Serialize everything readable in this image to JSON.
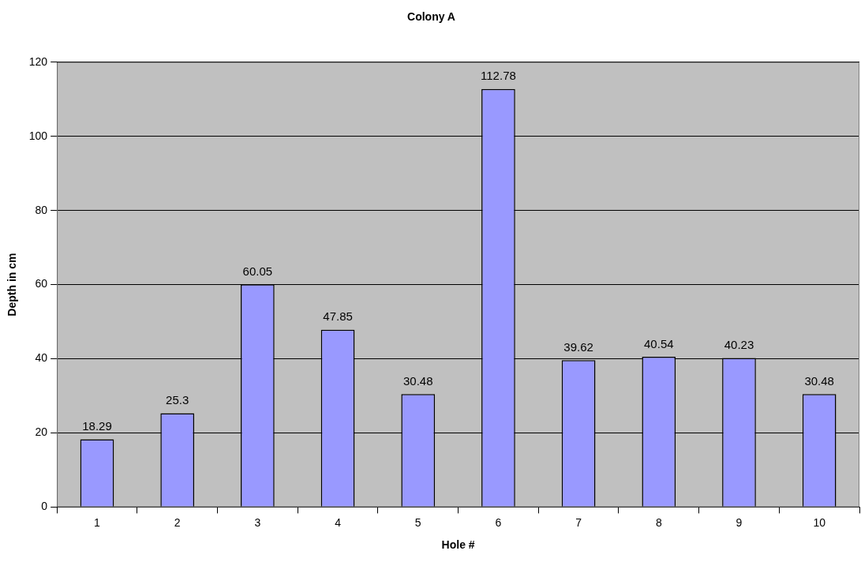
{
  "chart_data": {
    "type": "bar",
    "title": "Colony A",
    "xlabel": "Hole #",
    "ylabel": "Depth in cm",
    "categories": [
      "1",
      "2",
      "3",
      "4",
      "5",
      "6",
      "7",
      "8",
      "9",
      "10"
    ],
    "values": [
      18.29,
      25.3,
      60.05,
      47.85,
      30.48,
      112.78,
      39.62,
      40.54,
      40.23,
      30.48
    ],
    "color": "#9999ff",
    "ylim": [
      0,
      120
    ],
    "yticks": [
      0,
      20,
      40,
      60,
      80,
      100,
      120
    ],
    "grid": "y",
    "data_labels": true
  }
}
